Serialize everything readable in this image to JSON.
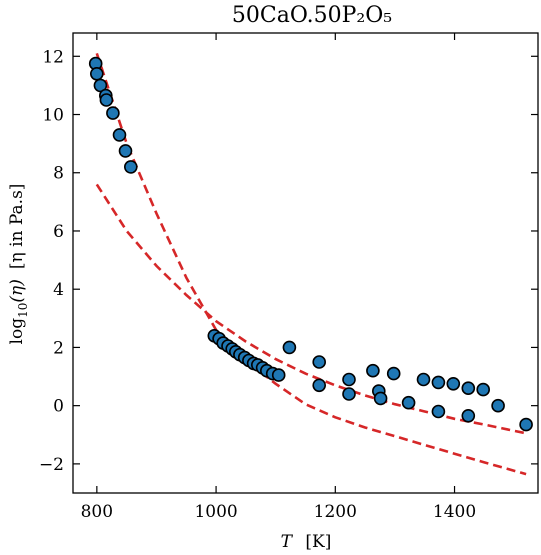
{
  "chart_data": {
    "type": "scatter",
    "title": "50CaO.50P₂O₅",
    "xlabel_symbol": "T",
    "xlabel_unit": "[K]",
    "ylabel_base": "log",
    "ylabel_sub": "10",
    "ylabel_arg": "(η)",
    "ylabel_unit": "[η in Pa.s]",
    "xlim": [
      760,
      1540
    ],
    "ylim": [
      -3,
      12.8
    ],
    "xticks": [
      800,
      1000,
      1200,
      1400
    ],
    "xtick_labels": [
      "800",
      "1000",
      "1200",
      "1400"
    ],
    "yticks": [
      -2,
      0,
      2,
      4,
      6,
      8,
      10,
      12
    ],
    "ytick_labels": [
      "−2",
      "0",
      "2",
      "4",
      "6",
      "8",
      "10",
      "12"
    ],
    "grid": false,
    "colors": {
      "points": "#1f77b4",
      "point_edge": "#000000",
      "curves": "#d62728"
    },
    "points": [
      {
        "x": 798,
        "y": 11.75
      },
      {
        "x": 800,
        "y": 11.4
      },
      {
        "x": 806,
        "y": 11.0
      },
      {
        "x": 815,
        "y": 10.65
      },
      {
        "x": 816,
        "y": 10.5
      },
      {
        "x": 827,
        "y": 10.05
      },
      {
        "x": 838,
        "y": 9.3
      },
      {
        "x": 848,
        "y": 8.75
      },
      {
        "x": 857,
        "y": 8.2
      },
      {
        "x": 997,
        "y": 2.4
      },
      {
        "x": 1005,
        "y": 2.3
      },
      {
        "x": 1012,
        "y": 2.15
      },
      {
        "x": 1020,
        "y": 2.05
      },
      {
        "x": 1027,
        "y": 1.95
      },
      {
        "x": 1033,
        "y": 1.85
      },
      {
        "x": 1040,
        "y": 1.75
      },
      {
        "x": 1048,
        "y": 1.65
      },
      {
        "x": 1055,
        "y": 1.55
      },
      {
        "x": 1063,
        "y": 1.45
      },
      {
        "x": 1070,
        "y": 1.4
      },
      {
        "x": 1078,
        "y": 1.3
      },
      {
        "x": 1085,
        "y": 1.2
      },
      {
        "x": 1095,
        "y": 1.1
      },
      {
        "x": 1105,
        "y": 1.05
      },
      {
        "x": 1123,
        "y": 2.0
      },
      {
        "x": 1173,
        "y": 1.5
      },
      {
        "x": 1173,
        "y": 0.7
      },
      {
        "x": 1223,
        "y": 0.9
      },
      {
        "x": 1223,
        "y": 0.4
      },
      {
        "x": 1263,
        "y": 1.2
      },
      {
        "x": 1273,
        "y": 0.5
      },
      {
        "x": 1276,
        "y": 0.25
      },
      {
        "x": 1298,
        "y": 1.1
      },
      {
        "x": 1323,
        "y": 0.1
      },
      {
        "x": 1348,
        "y": 0.9
      },
      {
        "x": 1373,
        "y": 0.8
      },
      {
        "x": 1373,
        "y": -0.2
      },
      {
        "x": 1398,
        "y": 0.75
      },
      {
        "x": 1423,
        "y": 0.6
      },
      {
        "x": 1423,
        "y": -0.35
      },
      {
        "x": 1448,
        "y": 0.55
      },
      {
        "x": 1473,
        "y": 0.0
      },
      {
        "x": 1520,
        "y": -0.65
      }
    ],
    "curves": [
      {
        "x": [
          800,
          850,
          900,
          950,
          1000,
          1050,
          1100,
          1150,
          1200,
          1250,
          1300,
          1350,
          1400,
          1450,
          1520
        ],
        "y": [
          12.1,
          9.0,
          6.6,
          4.4,
          2.6,
          1.55,
          0.75,
          0.05,
          -0.4,
          -0.75,
          -1.05,
          -1.35,
          -1.65,
          -1.95,
          -2.35
        ]
      },
      {
        "x": [
          800,
          850,
          900,
          950,
          1000,
          1050,
          1100,
          1150,
          1200,
          1250,
          1300,
          1350,
          1400,
          1450,
          1520
        ],
        "y": [
          7.6,
          6.0,
          4.8,
          3.8,
          2.9,
          2.2,
          1.6,
          1.1,
          0.7,
          0.35,
          0.05,
          -0.2,
          -0.45,
          -0.65,
          -0.95
        ]
      }
    ]
  }
}
